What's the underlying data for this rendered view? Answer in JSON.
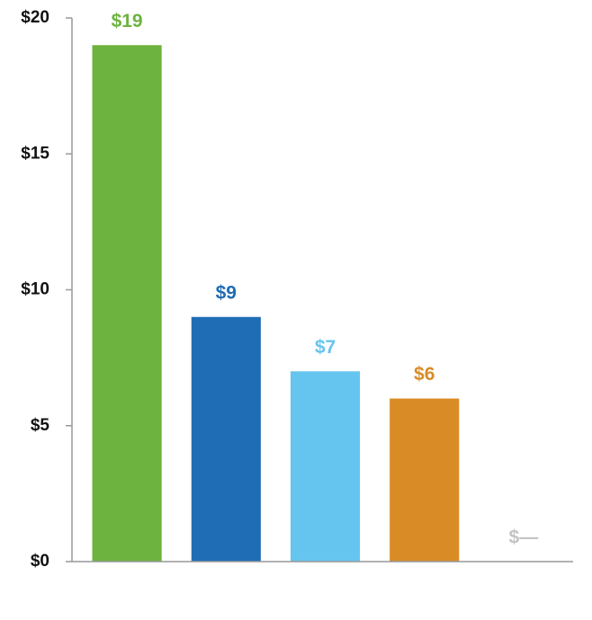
{
  "chart_data": {
    "type": "bar",
    "categories": [
      null,
      null,
      null,
      null,
      null
    ],
    "values": [
      19,
      9,
      7,
      6,
      0
    ],
    "value_labels": [
      "$19",
      "$9",
      "$7",
      "$6",
      "$—"
    ],
    "colors": [
      "#6db33f",
      "#1f6db5",
      "#66c5ee",
      "#d98c26",
      "#c4c4c4"
    ],
    "ylim": [
      0,
      20
    ],
    "yticks": [
      {
        "value": 0,
        "label": "$0"
      },
      {
        "value": 5,
        "label": "$5"
      },
      {
        "value": 10,
        "label": "$10"
      },
      {
        "value": 15,
        "label": "$15"
      },
      {
        "value": 20,
        "label": "$20"
      }
    ]
  }
}
